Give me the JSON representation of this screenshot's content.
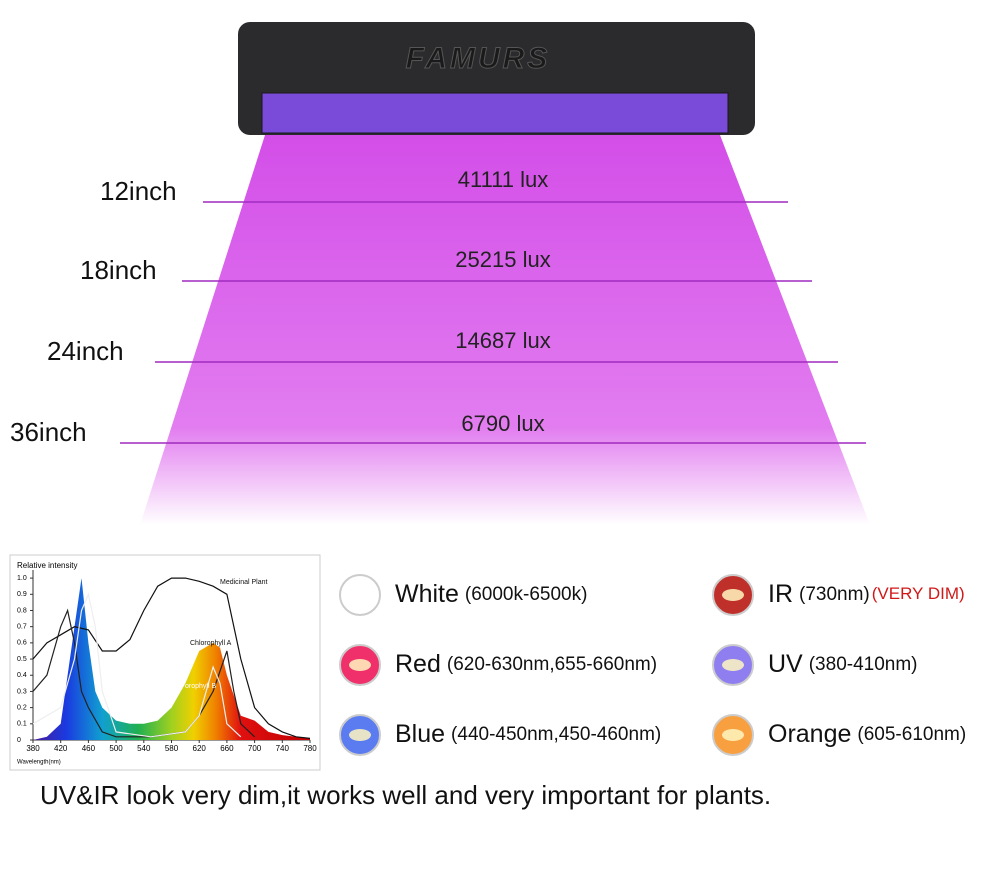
{
  "brand": "FAMURS",
  "distance_chart": {
    "rows": [
      {
        "distance": "12inch",
        "lux": "41111 lux"
      },
      {
        "distance": "18inch",
        "lux": "25215 lux"
      },
      {
        "distance": "24inch",
        "lux": "14687 lux"
      },
      {
        "distance": "36inch",
        "lux": "6790 lux"
      }
    ]
  },
  "spectrum_chart": {
    "type": "line",
    "y_label": "Relative intensity",
    "x_label": "Wavelength(nm)",
    "xlim": [
      380,
      780
    ],
    "ylim": [
      0,
      1.05
    ],
    "xticks": [
      380,
      420,
      460,
      500,
      540,
      580,
      620,
      660,
      700,
      740,
      780
    ],
    "yticks": [
      0,
      0.1,
      0.2,
      0.3,
      0.4,
      0.5,
      0.6,
      0.7,
      0.8,
      0.9,
      {
        "value": 1,
        "label": "1.0"
      }
    ],
    "led": {
      "x": [
        380,
        400,
        420,
        440,
        450,
        460,
        470,
        480,
        500,
        520,
        540,
        560,
        580,
        600,
        620,
        640,
        650,
        660,
        680,
        700,
        720,
        740,
        760,
        780
      ],
      "values": [
        0,
        0.02,
        0.1,
        0.7,
        1.0,
        0.6,
        0.3,
        0.2,
        0.12,
        0.1,
        0.1,
        0.12,
        0.2,
        0.35,
        0.55,
        0.6,
        0.57,
        0.4,
        0.15,
        0.12,
        0.05,
        0.03,
        0.02,
        0.01
      ]
    },
    "series": [
      {
        "name": "Medicinal Plant",
        "color": "#111111",
        "x": [
          380,
          400,
          420,
          440,
          460,
          480,
          500,
          520,
          540,
          560,
          580,
          600,
          620,
          640,
          660,
          680,
          700,
          720,
          740,
          760,
          780
        ],
        "values": [
          0.5,
          0.6,
          0.65,
          0.7,
          0.68,
          0.55,
          0.55,
          0.62,
          0.8,
          0.95,
          1.0,
          1.0,
          0.98,
          0.95,
          0.9,
          0.5,
          0.2,
          0.1,
          0.05,
          0.02,
          0.01
        ]
      },
      {
        "name": "Chlorophyll A",
        "color": "#222222",
        "x": [
          380,
          400,
          420,
          430,
          440,
          450,
          460,
          480,
          500,
          550,
          600,
          620,
          640,
          660,
          670,
          680,
          700
        ],
        "values": [
          0.3,
          0.4,
          0.7,
          0.8,
          0.6,
          0.3,
          0.2,
          0.05,
          0.02,
          0.02,
          0.05,
          0.15,
          0.3,
          0.55,
          0.3,
          0.1,
          0.02
        ]
      },
      {
        "name": "orophyll B",
        "color": "#eeeeee",
        "x": [
          380,
          420,
          440,
          450,
          460,
          470,
          480,
          500,
          550,
          600,
          620,
          640,
          650,
          660,
          680
        ],
        "values": [
          0.1,
          0.2,
          0.5,
          0.8,
          0.9,
          0.7,
          0.3,
          0.05,
          0.02,
          0.05,
          0.15,
          0.45,
          0.35,
          0.1,
          0.02
        ]
      }
    ]
  },
  "led_types": [
    {
      "name": "White",
      "detail": "(6000k-6500k)",
      "color": "#ffffff"
    },
    {
      "name": "IR",
      "detail": "(730nm)",
      "note": "(VERY DIM)",
      "color": "#c0302a"
    },
    {
      "name": "Red",
      "detail": "(620-630nm,655-660nm)",
      "color": "#f0306a"
    },
    {
      "name": "UV",
      "detail": "(380-410nm)",
      "color": "#8f7ef0"
    },
    {
      "name": "Blue",
      "detail": "(440-450nm,450-460nm)",
      "color": "#5a7cf0"
    },
    {
      "name": "Orange",
      "detail": "(605-610nm)",
      "color": "#f8a040"
    }
  ],
  "footer": "UV&IR look very dim,it works well and very important for plants."
}
